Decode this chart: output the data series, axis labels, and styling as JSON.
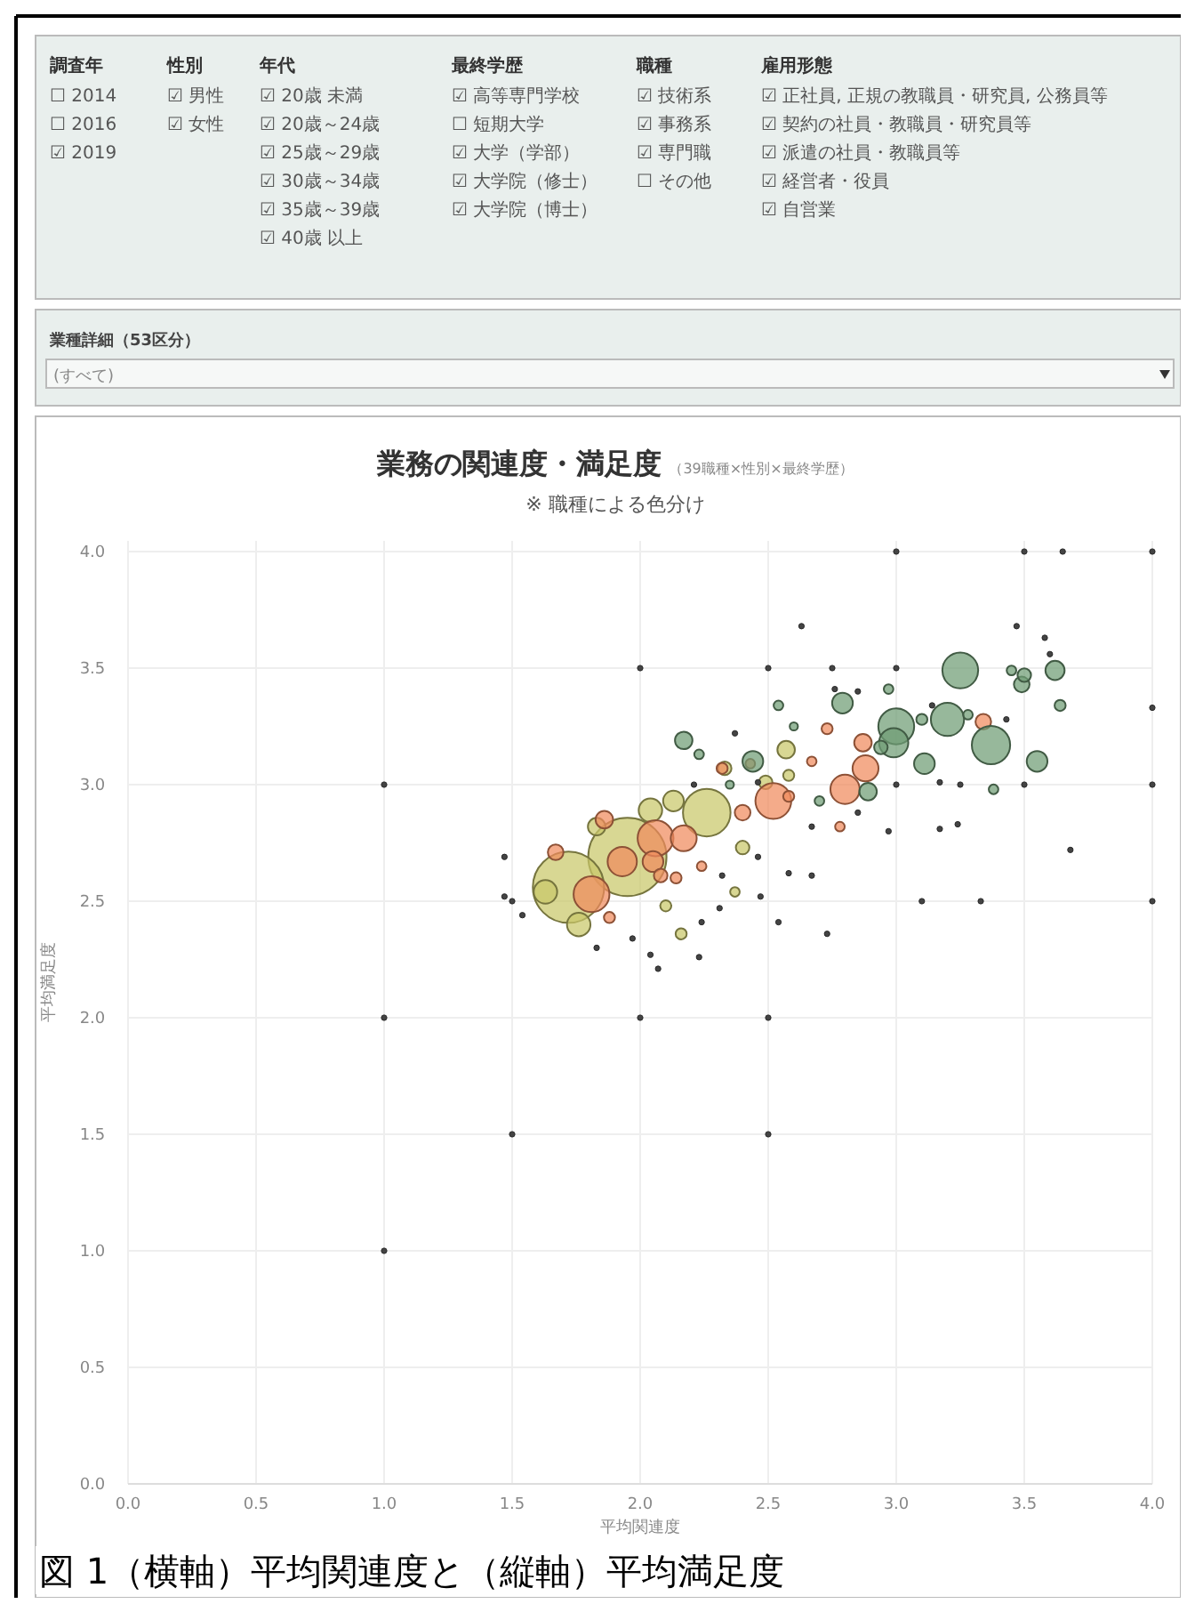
{
  "chart_data": [
    {
      "type": "other",
      "annotations": [
        "調査年\n☐ 2014\n☐ 2016\n☑ 2019",
        "性別\n☑ 男性\n☑ 女性",
        "年代\n☑ 20歳 未満\n☑ 20歳～24歳\n☑ 25歳～29歳\n☑ 30歳～34歳\n☑ 35歳～39歳\n☑ 40歳 以上",
        "最終学歴\n☑ 高等専門学校\n☐ 短期大学\n☑ 大学（学部）\n☑ 大学院（修士）\n☑ 大学院（博士）",
        "職種\n☑ 技術系\n☑ 事務系\n☑ 専門職\n☐ その他",
        "雇用形態\n☑ 正社員, 正規の教職員・研究員, 公務員等\n☑ 契約の社員・教職員・研究員等\n☑ 派遣の社員・教職員等\n☑ 経営者・役員\n☑ 自営業",
        "業種詳細（53区分）",
        "(すべて)"
      ]
    },
    {
      "type": "bubble",
      "title": "業務の関連度・満足度",
      "subtitle": "（39職種×性別×最終学歴）",
      "ylabel": "平均満足度",
      "annotations": [
        "※ 職種による色分け",
        "図 1（横軸）平均関連度と（縦軸）平均満足度"
      ],
      "xlim": [
        0,
        4
      ],
      "ylim": [
        0,
        4
      ],
      "xlabel": "平均関連度",
      "xticks": [
        {
          "value": 0,
          "label": "0.0"
        },
        {
          "value": 0.5,
          "label": "0.5"
        },
        {
          "value": 1,
          "label": "1.0"
        },
        {
          "value": 1.5,
          "label": "1.5"
        },
        {
          "value": 2,
          "label": "2.0"
        },
        {
          "value": 2.5,
          "label": "2.5"
        },
        {
          "value": 3,
          "label": "3.0"
        },
        {
          "value": 3.5,
          "label": "3.5"
        },
        {
          "value": 4,
          "label": "4.0"
        }
      ],
      "yticks": [
        {
          "value": 0,
          "label": "0.0"
        },
        {
          "value": 0.5,
          "label": "0.5"
        },
        {
          "value": 1,
          "label": "1.0"
        },
        {
          "value": 1.5,
          "label": "1.5"
        },
        {
          "value": 2,
          "label": "2.0"
        },
        {
          "value": 2.5,
          "label": "2.5"
        },
        {
          "value": 3,
          "label": "3.0"
        },
        {
          "value": 3.5,
          "label": "3.5"
        },
        {
          "value": 4,
          "label": "4.0"
        }
      ],
      "grid": true,
      "marker": "circle",
      "series": [
        {
          "color": "#c9c86a",
          "x": [
            1.95,
            1.72,
            2.26,
            1.63,
            1.76,
            2.13,
            2.04,
            2.57,
            2.33,
            2.4,
            2.16,
            2.49,
            2.58,
            1.83,
            2.1,
            2.37
          ],
          "values": [
            2.69,
            2.56,
            2.88,
            2.54,
            2.4,
            2.93,
            2.89,
            3.15,
            3.07,
            2.73,
            2.36,
            3.01,
            3.04,
            2.82,
            2.48,
            2.54
          ],
          "sizes": [
            1,
            0.83,
            0.37,
            0.09,
            0.09,
            0.07,
            0.09,
            0.05,
            0.03,
            0.03,
            0.02,
            0.03,
            0.02,
            0.05,
            0.02,
            0.015
          ]
        },
        {
          "color": "#f08a5d",
          "x": [
            1.81,
            1.93,
            2.06,
            2.17,
            2.05,
            2.52,
            2.8,
            2.88,
            2.87,
            1.86,
            1.67,
            2.4,
            2.58,
            3.34,
            2.73,
            2.32,
            2.08,
            2.14,
            1.88,
            2.67,
            2.43,
            2.78,
            2.24
          ],
          "values": [
            2.53,
            2.67,
            2.77,
            2.77,
            2.67,
            2.93,
            2.98,
            3.07,
            3.18,
            2.85,
            2.71,
            2.88,
            2.95,
            3.27,
            3.24,
            3.07,
            2.61,
            2.6,
            2.43,
            3.1,
            3.09,
            2.82,
            2.65
          ],
          "sizes": [
            0.21,
            0.14,
            0.21,
            0.11,
            0.07,
            0.21,
            0.14,
            0.11,
            0.05,
            0.05,
            0.04,
            0.04,
            0.02,
            0.04,
            0.02,
            0.02,
            0.03,
            0.02,
            0.02,
            0.015,
            0.015,
            0.015,
            0.015
          ]
        },
        {
          "color": "#6f9c74",
          "x": [
            3.25,
            3.37,
            3.2,
            3.0,
            2.99,
            2.79,
            3.11,
            3.55,
            3.62,
            3.49,
            3.5,
            3.45,
            3.64,
            2.17,
            2.44,
            2.89,
            3.1,
            2.94,
            2.23,
            2.54,
            2.97,
            3.38,
            2.7,
            2.35,
            2.6,
            3.28
          ],
          "values": [
            3.49,
            3.17,
            3.28,
            3.25,
            3.18,
            3.35,
            3.09,
            3.1,
            3.49,
            3.43,
            3.47,
            3.49,
            3.34,
            3.19,
            3.1,
            2.97,
            3.28,
            3.16,
            3.13,
            3.34,
            3.41,
            2.98,
            2.93,
            3.0,
            3.25,
            3.3
          ],
          "sizes": [
            0.21,
            0.24,
            0.18,
            0.21,
            0.14,
            0.07,
            0.07,
            0.07,
            0.06,
            0.04,
            0.03,
            0.015,
            0.02,
            0.05,
            0.07,
            0.05,
            0.02,
            0.03,
            0.015,
            0.015,
            0.015,
            0.015,
            0.015,
            0.011,
            0.011,
            0.015
          ]
        },
        {
          "color": "#444444",
          "x": [
            1,
            1,
            1,
            1.5,
            1.5,
            2,
            2,
            2.5,
            2.5,
            3,
            3.5,
            3.65,
            4,
            2.5,
            2.75,
            3,
            3.5,
            4,
            4,
            3.25,
            3,
            2.46,
            3.1,
            3.33,
            4,
            1.47,
            1.47,
            1.54,
            1.83,
            1.97,
            2.04,
            2.07,
            2.23,
            2.24,
            2.32,
            2.54,
            2.58,
            2.67,
            2.73,
            2.97,
            3.17,
            3.24,
            3.68,
            2.63,
            3.47,
            3.58,
            3.6,
            3.43,
            3.17,
            2.67,
            2.85,
            2.46,
            2.31,
            2.47,
            2.37,
            2.21,
            2.76,
            2.85,
            3.14
          ],
          "values": [
            3,
            2,
            1,
            2.5,
            1.5,
            3.5,
            2,
            2,
            1.5,
            4,
            4,
            4,
            4,
            3.5,
            3.5,
            3.5,
            3,
            3,
            3.33,
            3,
            3,
            3.01,
            2.5,
            2.5,
            2.5,
            2.69,
            2.52,
            2.44,
            2.3,
            2.34,
            2.27,
            2.21,
            2.26,
            2.41,
            2.61,
            2.41,
            2.62,
            2.61,
            2.36,
            2.8,
            2.81,
            2.83,
            2.72,
            3.68,
            3.68,
            3.63,
            3.56,
            3.28,
            3.01,
            2.82,
            2.88,
            2.69,
            2.47,
            2.52,
            3.22,
            3.0,
            3.41,
            3.4,
            3.34
          ],
          "sizes": [
            0.005,
            0.005,
            0.005,
            0.005,
            0.005,
            0.005,
            0.005,
            0.005,
            0.005,
            0.005,
            0.005,
            0.005,
            0.005,
            0.005,
            0.005,
            0.005,
            0.005,
            0.005,
            0.005,
            0.005,
            0.005,
            0.005,
            0.005,
            0.005,
            0.005,
            0.005,
            0.005,
            0.005,
            0.005,
            0.005,
            0.005,
            0.005,
            0.005,
            0.005,
            0.005,
            0.005,
            0.005,
            0.005,
            0.005,
            0.005,
            0.005,
            0.005,
            0.005,
            0.005,
            0.005,
            0.005,
            0.005,
            0.005,
            0.005,
            0.005,
            0.005,
            0.005,
            0.005,
            0.005,
            0.005,
            0.005,
            0.005,
            0.005,
            0.005
          ]
        }
      ]
    }
  ]
}
